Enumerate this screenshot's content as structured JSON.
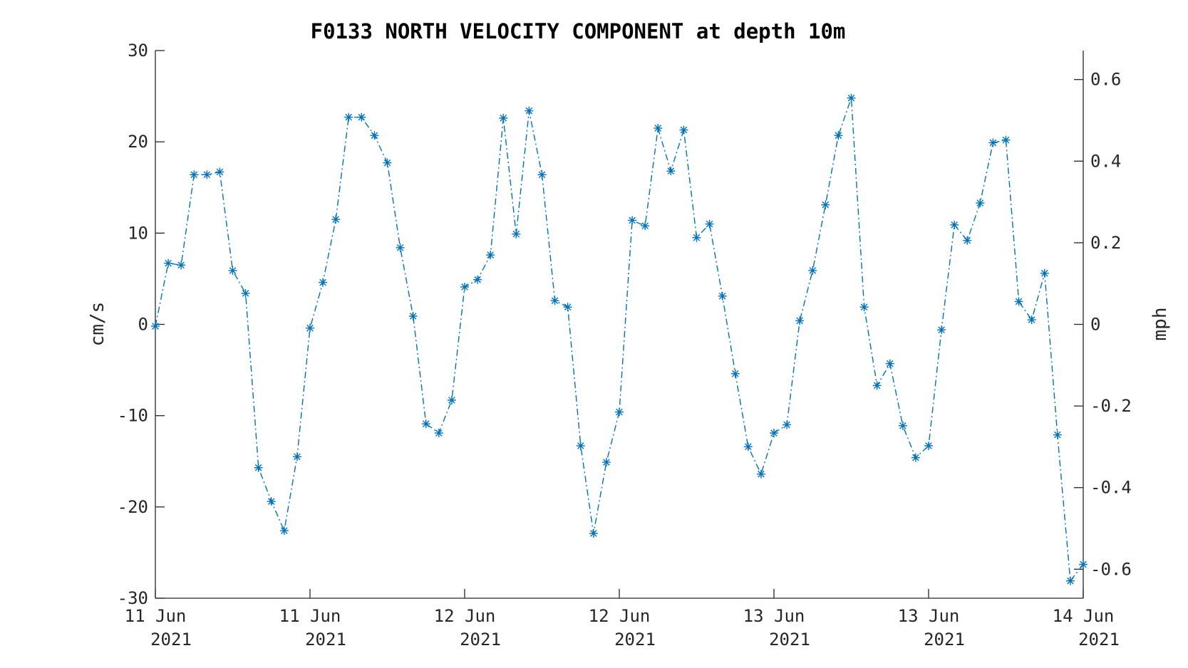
{
  "chart_data": {
    "type": "line",
    "title": "F0133 NORTH VELOCITY COMPONENT at depth 10m",
    "xlabel": "",
    "ylabel": "cm/s",
    "y2label": "mph",
    "ylim": [
      -30,
      30
    ],
    "y2lim": [
      -0.671,
      0.671
    ],
    "yticks": [
      30,
      20,
      10,
      0,
      -10,
      -20,
      -30
    ],
    "y2ticks": [
      0.6,
      0.4,
      0.2,
      0,
      -0.2,
      -0.4,
      -0.6
    ],
    "xlim": [
      "2021-06-11T00:00",
      "2021-06-14T00:00"
    ],
    "xticks": [
      {
        "x": "2021-06-11T00:00",
        "label": [
          "11 Jun",
          "2021"
        ]
      },
      {
        "x": "2021-06-11T12:00",
        "label": [
          "11 Jun",
          "2021"
        ]
      },
      {
        "x": "2021-06-12T00:00",
        "label": [
          "12 Jun",
          "2021"
        ]
      },
      {
        "x": "2021-06-12T12:00",
        "label": [
          "12 Jun",
          "2021"
        ]
      },
      {
        "x": "2021-06-13T00:00",
        "label": [
          "13 Jun",
          "2021"
        ]
      },
      {
        "x": "2021-06-13T12:00",
        "label": [
          "13 Jun",
          "2021"
        ]
      },
      {
        "x": "2021-06-14T00:00",
        "label": [
          "14 Jun",
          "2021"
        ]
      }
    ],
    "grid": false,
    "line_style": "dash-dot",
    "marker": "asterisk",
    "color": "#0072BD",
    "series": [
      {
        "x": [
          "2021-06-11T00:00",
          "2021-06-11T01:00",
          "2021-06-11T02:00",
          "2021-06-11T03:00",
          "2021-06-11T04:00",
          "2021-06-11T05:00",
          "2021-06-11T06:00",
          "2021-06-11T07:00",
          "2021-06-11T08:00",
          "2021-06-11T09:00",
          "2021-06-11T10:00",
          "2021-06-11T11:00",
          "2021-06-11T12:00",
          "2021-06-11T13:00",
          "2021-06-11T14:00",
          "2021-06-11T15:00",
          "2021-06-11T16:00",
          "2021-06-11T17:00",
          "2021-06-11T18:00",
          "2021-06-11T19:00",
          "2021-06-11T20:00",
          "2021-06-11T21:00",
          "2021-06-11T22:00",
          "2021-06-11T23:00",
          "2021-06-12T00:00",
          "2021-06-12T01:00",
          "2021-06-12T02:00",
          "2021-06-12T03:00",
          "2021-06-12T04:00",
          "2021-06-12T05:00",
          "2021-06-12T06:00",
          "2021-06-12T07:00",
          "2021-06-12T08:00",
          "2021-06-12T09:00",
          "2021-06-12T10:00",
          "2021-06-12T11:00",
          "2021-06-12T12:00",
          "2021-06-12T13:00",
          "2021-06-12T14:00",
          "2021-06-12T15:00",
          "2021-06-12T16:00",
          "2021-06-12T17:00",
          "2021-06-12T18:00",
          "2021-06-12T19:00",
          "2021-06-12T20:00",
          "2021-06-12T21:00",
          "2021-06-12T22:00",
          "2021-06-12T23:00",
          "2021-06-13T00:00",
          "2021-06-13T01:00",
          "2021-06-13T02:00",
          "2021-06-13T03:00",
          "2021-06-13T04:00",
          "2021-06-13T05:00",
          "2021-06-13T06:00",
          "2021-06-13T07:00",
          "2021-06-13T08:00",
          "2021-06-13T09:00",
          "2021-06-13T10:00",
          "2021-06-13T11:00",
          "2021-06-13T12:00",
          "2021-06-13T13:00",
          "2021-06-13T14:00",
          "2021-06-13T15:00",
          "2021-06-13T16:00",
          "2021-06-13T17:00",
          "2021-06-13T18:00",
          "2021-06-13T19:00",
          "2021-06-13T20:00",
          "2021-06-13T21:00",
          "2021-06-13T22:00",
          "2021-06-13T23:00",
          "2021-06-14T00:00"
        ],
        "values": [
          -0.2,
          6.7,
          6.5,
          16.4,
          16.4,
          16.7,
          5.9,
          3.4,
          -15.7,
          -19.4,
          -22.6,
          -14.5,
          -0.4,
          4.6,
          11.5,
          22.7,
          22.7,
          20.7,
          17.7,
          8.4,
          0.9,
          -10.9,
          -11.9,
          -8.3,
          4.1,
          4.9,
          7.6,
          22.6,
          9.9,
          23.4,
          16.4,
          2.6,
          1.9,
          -13.3,
          -22.9,
          -15.1,
          -9.6,
          11.4,
          10.8,
          21.5,
          16.8,
          21.3,
          9.5,
          11.0,
          3.1,
          -5.4,
          -13.4,
          -16.4,
          -11.9,
          -11.0,
          0.4,
          5.9,
          13.1,
          20.7,
          24.8,
          1.9,
          -6.7,
          -4.3,
          -11.1,
          -14.6,
          -13.3,
          -0.6,
          10.9,
          9.2,
          13.3,
          19.9,
          20.2,
          2.5,
          0.5,
          5.6,
          -12.1,
          -28.1,
          -26.3
        ]
      }
    ]
  }
}
